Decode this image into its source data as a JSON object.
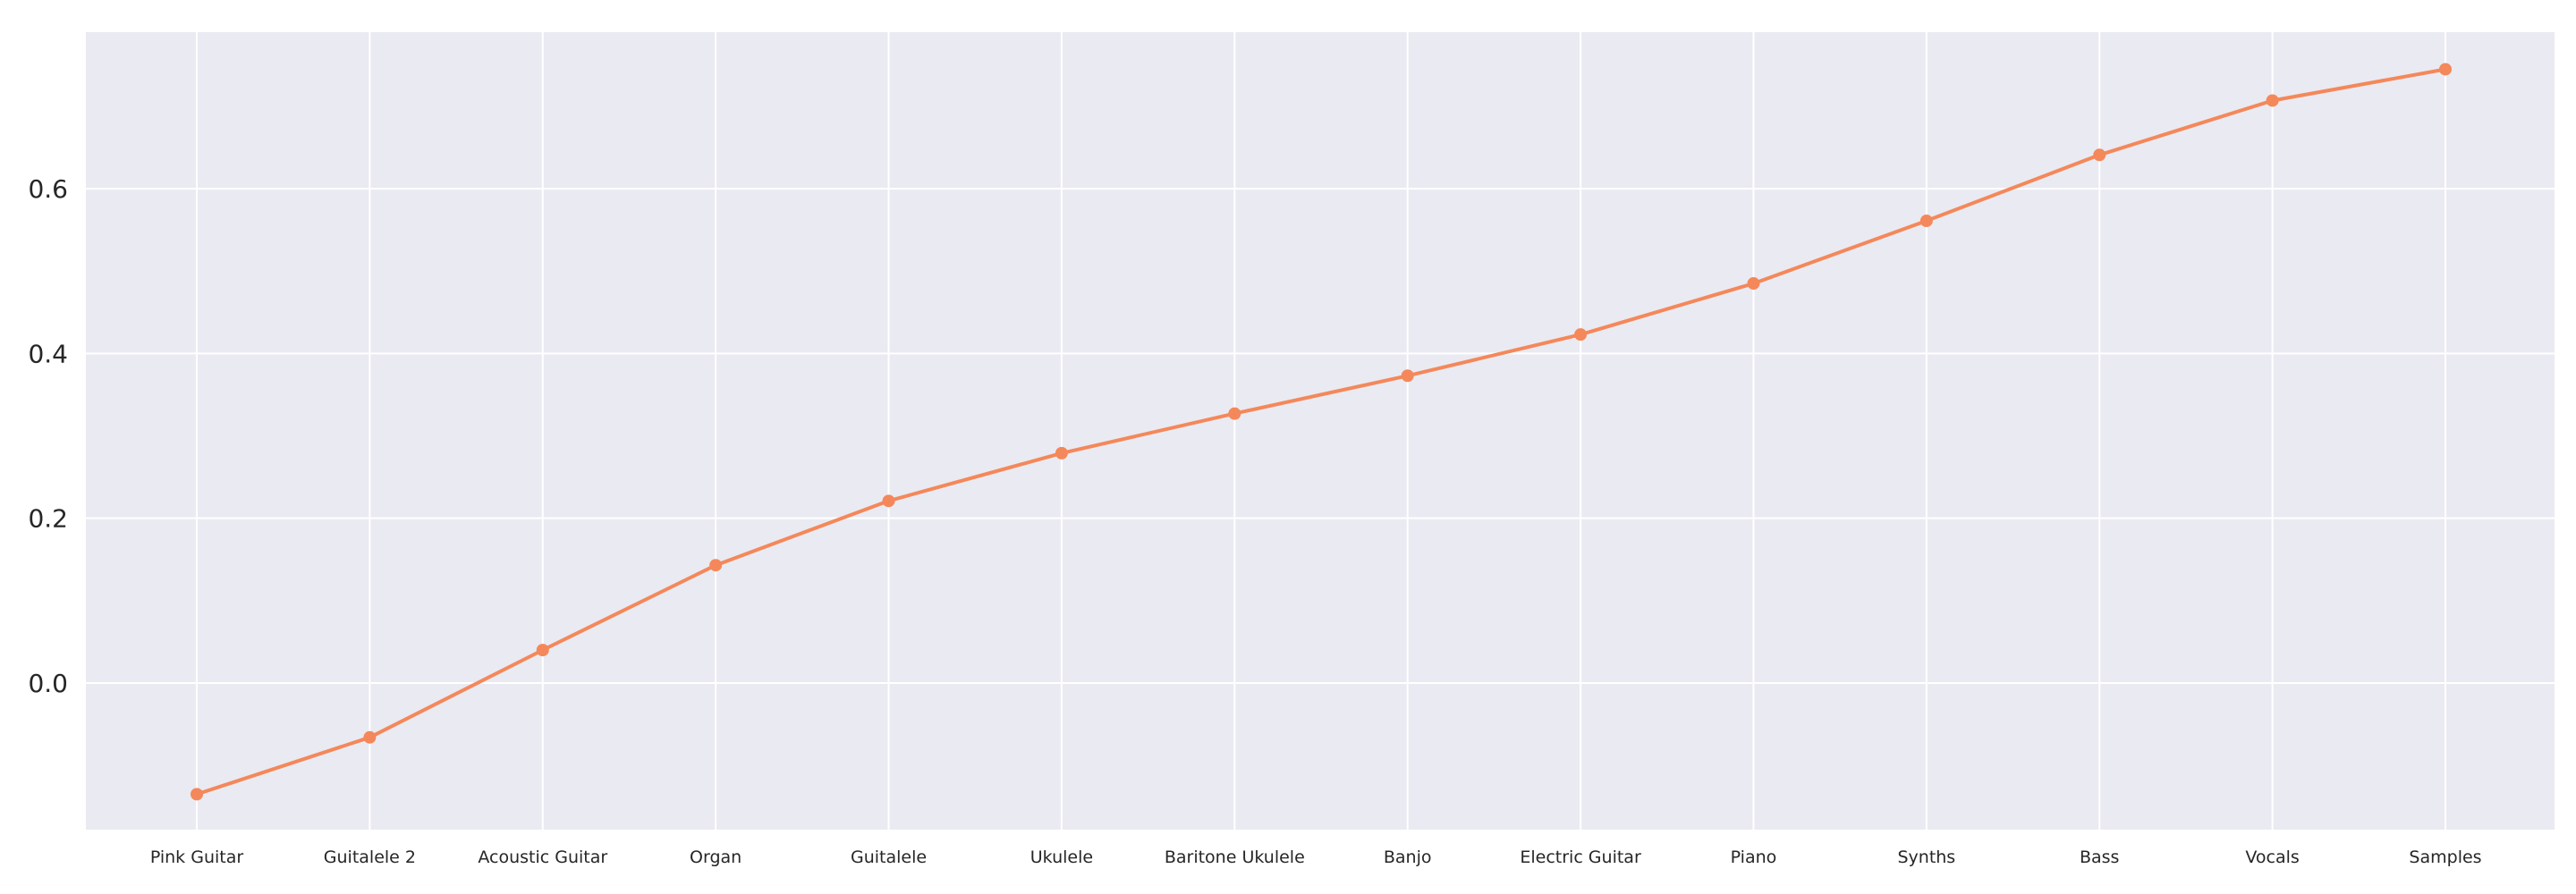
{
  "chart_data": {
    "type": "line",
    "categories": [
      "Pink Guitar",
      "Guitalele 2",
      "Acoustic Guitar",
      "Organ",
      "Guitalele",
      "Ukulele",
      "Baritone Ukulele",
      "Banjo",
      "Electric Guitar",
      "Piano",
      "Synths",
      "Bass",
      "Vocals",
      "Samples"
    ],
    "series": [
      {
        "values": [
          -0.135,
          -0.066,
          0.04,
          0.143,
          0.221,
          0.279,
          0.327,
          0.373,
          0.423,
          0.485,
          0.561,
          0.641,
          0.707,
          0.745
        ]
      }
    ],
    "yticks": [
      0.0,
      0.2,
      0.4,
      0.6
    ],
    "ytick_labels": [
      "0.0",
      "0.2",
      "0.4",
      "0.6"
    ],
    "ylim": [
      -0.178,
      0.79
    ],
    "grid": true,
    "colors": {
      "line": "#f4885a",
      "plot_bg": "#eaeaf2",
      "grid": "#ffffff"
    }
  }
}
